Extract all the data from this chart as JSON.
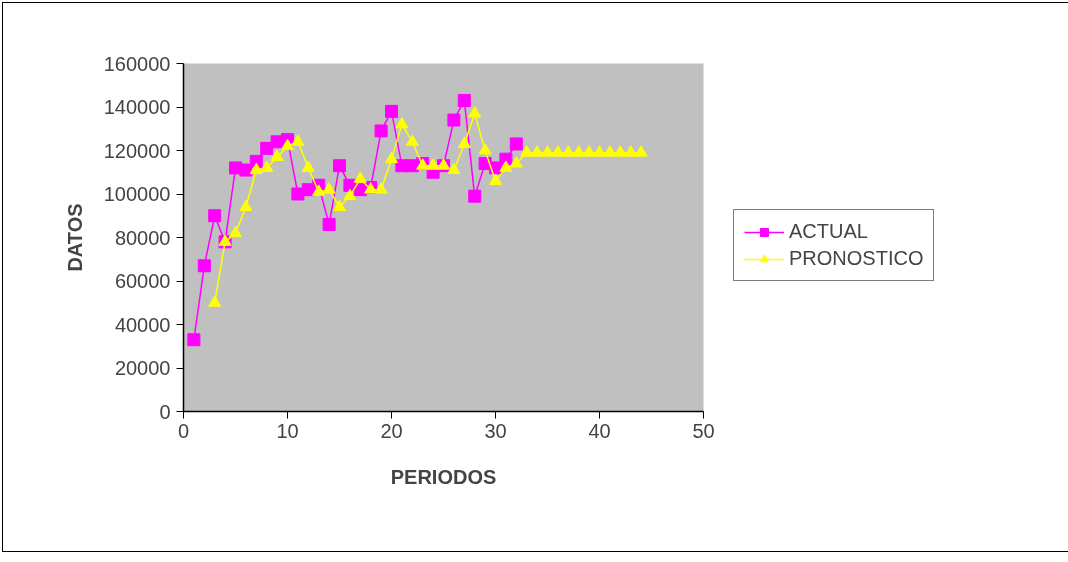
{
  "chart_data": {
    "type": "line",
    "xlabel": "PERIODOS",
    "ylabel": "DATOS",
    "xlim": [
      0,
      50
    ],
    "xticks": [
      0,
      10,
      20,
      30,
      40,
      50
    ],
    "ylim": [
      0,
      160000
    ],
    "yticks": [
      0,
      20000,
      40000,
      60000,
      80000,
      100000,
      120000,
      140000,
      160000
    ],
    "grid": false,
    "legend": "right",
    "series": [
      {
        "name": "ACTUAL",
        "color": "#ff00ff",
        "marker": "square",
        "x": [
          1,
          2,
          3,
          4,
          5,
          6,
          7,
          8,
          9,
          10,
          11,
          12,
          13,
          14,
          15,
          16,
          17,
          18,
          19,
          20,
          21,
          22,
          23,
          24,
          25,
          26,
          27,
          28,
          29,
          30,
          31,
          32
        ],
        "values": [
          33000,
          67000,
          90000,
          78000,
          112000,
          111000,
          115000,
          121000,
          124000,
          125000,
          100000,
          102000,
          104000,
          86000,
          113000,
          104000,
          102000,
          103000,
          129000,
          138000,
          113000,
          113000,
          114000,
          110000,
          113000,
          134000,
          143000,
          99000,
          114000,
          112000,
          116000,
          123000
        ]
      },
      {
        "name": "PRONOSTICO",
        "color": "#ffff00",
        "marker": "triangle",
        "x": [
          3,
          4,
          5,
          6,
          7,
          8,
          9,
          10,
          11,
          12,
          13,
          14,
          15,
          16,
          17,
          18,
          19,
          20,
          21,
          22,
          23,
          24,
          25,
          26,
          27,
          28,
          29,
          30,
          31,
          32,
          33,
          34,
          35,
          36,
          37,
          38,
          39,
          40,
          41,
          42,
          43,
          44
        ],
        "values": [
          50000,
          78000,
          82000,
          94000,
          111000,
          112000,
          117000,
          122000,
          124000,
          112000,
          101000,
          102000,
          94000,
          99000,
          107000,
          102000,
          102000,
          116000,
          132000,
          124000,
          113000,
          113000,
          113000,
          111000,
          123000,
          137000,
          120000,
          106000,
          112000,
          114000,
          119000,
          119000,
          119000,
          119000,
          119000,
          119000,
          119000,
          119000,
          119000,
          119000,
          119000,
          119000
        ]
      }
    ]
  }
}
